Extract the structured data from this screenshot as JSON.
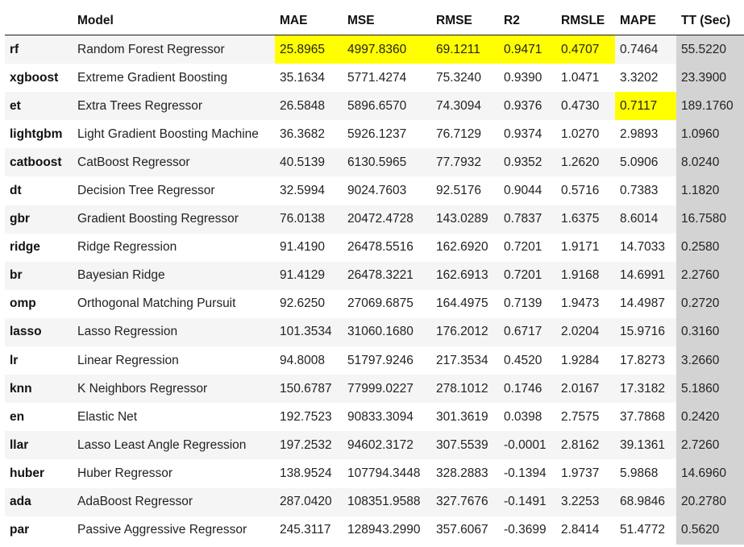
{
  "colors": {
    "best_value_highlight": "#ffff00",
    "tt_column_shade": "#d3d3d3",
    "striped_row": "#f5f5f5"
  },
  "table": {
    "columns": [
      "",
      "Model",
      "MAE",
      "MSE",
      "RMSE",
      "R2",
      "RMSLE",
      "MAPE",
      "TT (Sec)"
    ],
    "rows": [
      {
        "id": "rf",
        "model": "Random Forest Regressor",
        "mae": "25.8965",
        "mse": "4997.8360",
        "rmse": "69.1211",
        "r2": "0.9471",
        "rmsle": "0.4707",
        "mape": "0.7464",
        "tt": "55.5220",
        "highlight": [
          "mae",
          "mse",
          "rmse",
          "r2",
          "rmsle"
        ]
      },
      {
        "id": "xgboost",
        "model": "Extreme Gradient Boosting",
        "mae": "35.1634",
        "mse": "5771.4274",
        "rmse": "75.3240",
        "r2": "0.9390",
        "rmsle": "1.0471",
        "mape": "3.3202",
        "tt": "23.3900",
        "highlight": []
      },
      {
        "id": "et",
        "model": "Extra Trees Regressor",
        "mae": "26.5848",
        "mse": "5896.6570",
        "rmse": "74.3094",
        "r2": "0.9376",
        "rmsle": "0.4730",
        "mape": "0.7117",
        "tt": "189.1760",
        "highlight": [
          "mape"
        ]
      },
      {
        "id": "lightgbm",
        "model": "Light Gradient Boosting Machine",
        "mae": "36.3682",
        "mse": "5926.1237",
        "rmse": "76.7129",
        "r2": "0.9374",
        "rmsle": "1.0270",
        "mape": "2.9893",
        "tt": "1.0960",
        "highlight": []
      },
      {
        "id": "catboost",
        "model": "CatBoost Regressor",
        "mae": "40.5139",
        "mse": "6130.5965",
        "rmse": "77.7932",
        "r2": "0.9352",
        "rmsle": "1.2620",
        "mape": "5.0906",
        "tt": "8.0240",
        "highlight": []
      },
      {
        "id": "dt",
        "model": "Decision Tree Regressor",
        "mae": "32.5994",
        "mse": "9024.7603",
        "rmse": "92.5176",
        "r2": "0.9044",
        "rmsle": "0.5716",
        "mape": "0.7383",
        "tt": "1.1820",
        "highlight": []
      },
      {
        "id": "gbr",
        "model": "Gradient Boosting Regressor",
        "mae": "76.0138",
        "mse": "20472.4728",
        "rmse": "143.0289",
        "r2": "0.7837",
        "rmsle": "1.6375",
        "mape": "8.6014",
        "tt": "16.7580",
        "highlight": []
      },
      {
        "id": "ridge",
        "model": "Ridge Regression",
        "mae": "91.4190",
        "mse": "26478.5516",
        "rmse": "162.6920",
        "r2": "0.7201",
        "rmsle": "1.9171",
        "mape": "14.7033",
        "tt": "0.2580",
        "highlight": []
      },
      {
        "id": "br",
        "model": "Bayesian Ridge",
        "mae": "91.4129",
        "mse": "26478.3221",
        "rmse": "162.6913",
        "r2": "0.7201",
        "rmsle": "1.9168",
        "mape": "14.6991",
        "tt": "2.2760",
        "highlight": []
      },
      {
        "id": "omp",
        "model": "Orthogonal Matching Pursuit",
        "mae": "92.6250",
        "mse": "27069.6875",
        "rmse": "164.4975",
        "r2": "0.7139",
        "rmsle": "1.9473",
        "mape": "14.4987",
        "tt": "0.2720",
        "highlight": []
      },
      {
        "id": "lasso",
        "model": "Lasso Regression",
        "mae": "101.3534",
        "mse": "31060.1680",
        "rmse": "176.2012",
        "r2": "0.6717",
        "rmsle": "2.0204",
        "mape": "15.9716",
        "tt": "0.3160",
        "highlight": []
      },
      {
        "id": "lr",
        "model": "Linear Regression",
        "mae": "94.8008",
        "mse": "51797.9246",
        "rmse": "217.3534",
        "r2": "0.4520",
        "rmsle": "1.9284",
        "mape": "17.8273",
        "tt": "3.2660",
        "highlight": []
      },
      {
        "id": "knn",
        "model": "K Neighbors Regressor",
        "mae": "150.6787",
        "mse": "77999.0227",
        "rmse": "278.1012",
        "r2": "0.1746",
        "rmsle": "2.0167",
        "mape": "17.3182",
        "tt": "5.1860",
        "highlight": []
      },
      {
        "id": "en",
        "model": "Elastic Net",
        "mae": "192.7523",
        "mse": "90833.3094",
        "rmse": "301.3619",
        "r2": "0.0398",
        "rmsle": "2.7575",
        "mape": "37.7868",
        "tt": "0.2420",
        "highlight": []
      },
      {
        "id": "llar",
        "model": "Lasso Least Angle Regression",
        "mae": "197.2532",
        "mse": "94602.3172",
        "rmse": "307.5539",
        "r2": "-0.0001",
        "rmsle": "2.8162",
        "mape": "39.1361",
        "tt": "2.7260",
        "highlight": []
      },
      {
        "id": "huber",
        "model": "Huber Regressor",
        "mae": "138.9524",
        "mse": "107794.3448",
        "rmse": "328.2883",
        "r2": "-0.1394",
        "rmsle": "1.9737",
        "mape": "5.9868",
        "tt": "14.6960",
        "highlight": []
      },
      {
        "id": "ada",
        "model": "AdaBoost Regressor",
        "mae": "287.0420",
        "mse": "108351.9588",
        "rmse": "327.7676",
        "r2": "-0.1491",
        "rmsle": "3.2253",
        "mape": "68.9846",
        "tt": "20.2780",
        "highlight": []
      },
      {
        "id": "par",
        "model": "Passive Aggressive Regressor",
        "mae": "245.3117",
        "mse": "128943.2990",
        "rmse": "357.6067",
        "r2": "-0.3699",
        "rmsle": "2.8414",
        "mape": "51.4772",
        "tt": "0.5620",
        "highlight": []
      }
    ]
  }
}
